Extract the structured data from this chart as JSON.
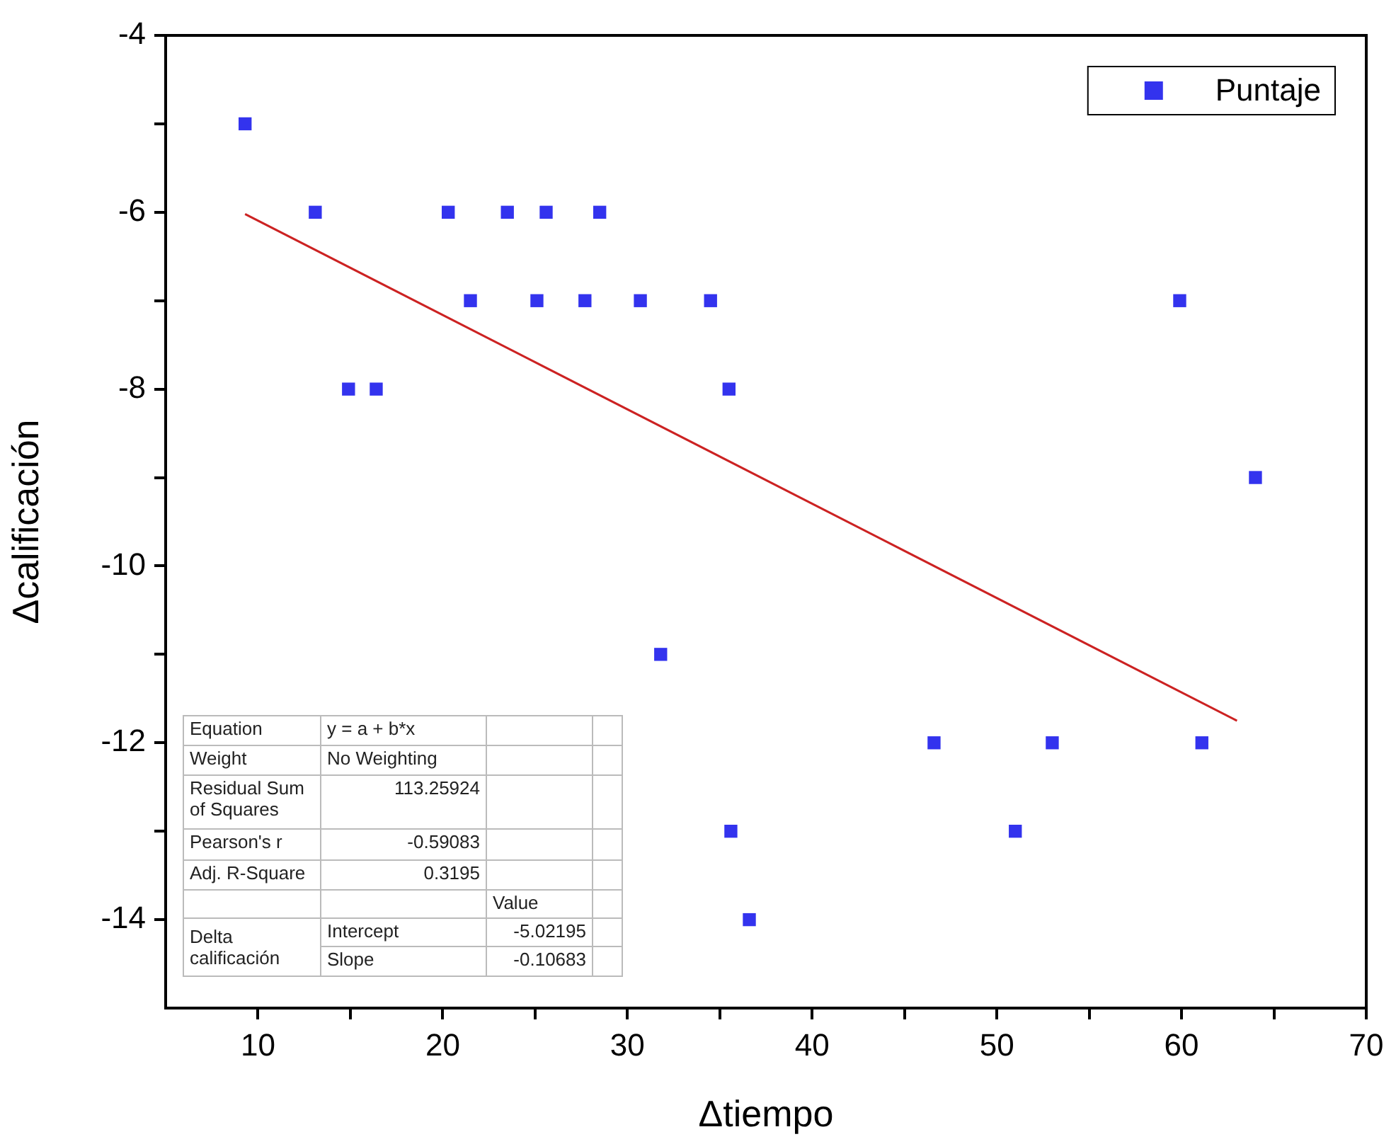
{
  "chart_data": {
    "type": "scatter",
    "xlabel": "Δtiempo",
    "ylabel": "Δcalificación",
    "xlim": [
      5,
      70
    ],
    "xticks": [
      10,
      {
        "value": 15,
        "label": null
      },
      20,
      {
        "value": 25,
        "label": null
      },
      30,
      {
        "value": 35,
        "label": null
      },
      40,
      {
        "value": 45,
        "label": null
      },
      50,
      {
        "value": 55,
        "label": null
      },
      60,
      {
        "value": 65,
        "label": null
      },
      70
    ],
    "ylim": [
      -15,
      -4
    ],
    "yticks": [
      -14,
      {
        "value": -13,
        "label": null
      },
      -12,
      {
        "value": -11,
        "label": null
      },
      -10,
      {
        "value": -9,
        "label": null
      },
      -8,
      {
        "value": -7,
        "label": null
      },
      -6,
      {
        "value": -5,
        "label": null
      },
      -4
    ],
    "grid": false,
    "legend": "top right",
    "marker": "square",
    "series": [
      {
        "name": "Puntaje",
        "color": "#3333ee",
        "x": [
          9.3,
          13.1,
          20.3,
          23.5,
          25.6,
          28.5,
          21.5,
          25.1,
          27.7,
          30.7,
          34.5,
          14.9,
          16.4,
          35.5,
          59.9,
          64.0,
          31.8,
          46.6,
          53.0,
          61.1,
          35.6,
          51.0,
          36.6
        ],
        "values": [
          -5,
          -6,
          -6,
          -6,
          -6,
          -6,
          -7,
          -7,
          -7,
          -7,
          -7,
          -8,
          -8,
          -8,
          -7,
          -9,
          -11,
          -12,
          -12,
          -12,
          -13,
          -13,
          -14
        ]
      },
      {
        "type": "line",
        "color": "#cc2222",
        "marker": "none",
        "x": [
          9.3,
          63.0
        ],
        "values": [
          -6.02,
          -11.75
        ]
      }
    ],
    "annotations": [
      "Equation",
      "y = a + b*x",
      "Weight",
      "No Weighting",
      "Residual Sum of Squares",
      "113.25924",
      "Pearson's r",
      "-0.59083",
      "Adj. R-Square",
      "0.3195",
      "Value",
      "Delta calificación",
      "Intercept",
      "-5.02195",
      "Slope",
      "-0.10683"
    ]
  }
}
